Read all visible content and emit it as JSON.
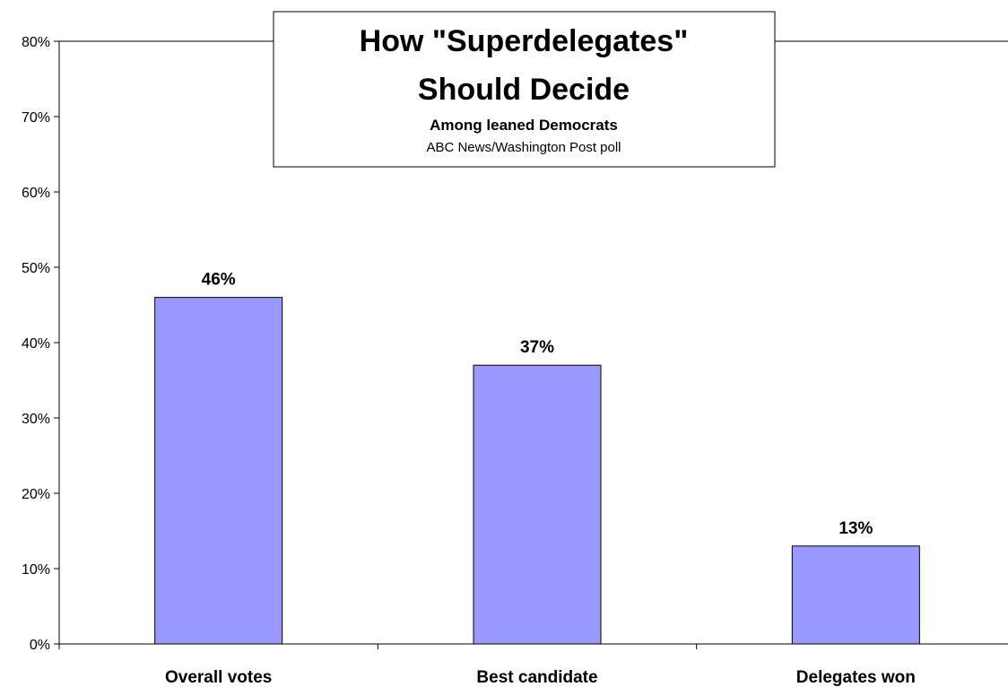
{
  "chart_data": {
    "type": "bar",
    "title": "How \"Superdelegates\" Should Decide",
    "title_lines": [
      "How \"Superdelegates\"",
      "Should Decide"
    ],
    "subtitle": "Among leaned Democrats",
    "source": "ABC News/Washington Post poll",
    "categories": [
      "Overall votes",
      "Best candidate",
      "Delegates won"
    ],
    "values": [
      46,
      37,
      13
    ],
    "data_labels": [
      "46%",
      "37%",
      "13%"
    ],
    "ylim": [
      0,
      80
    ],
    "yticks": [
      0,
      10,
      20,
      30,
      40,
      50,
      60,
      70,
      80
    ],
    "ytick_labels": [
      "0%",
      "10%",
      "20%",
      "30%",
      "40%",
      "50%",
      "60%",
      "70%",
      "80%"
    ],
    "grid": false,
    "legend": "none",
    "bar_color": "#9999ff",
    "bar_border_color": "#000000"
  }
}
